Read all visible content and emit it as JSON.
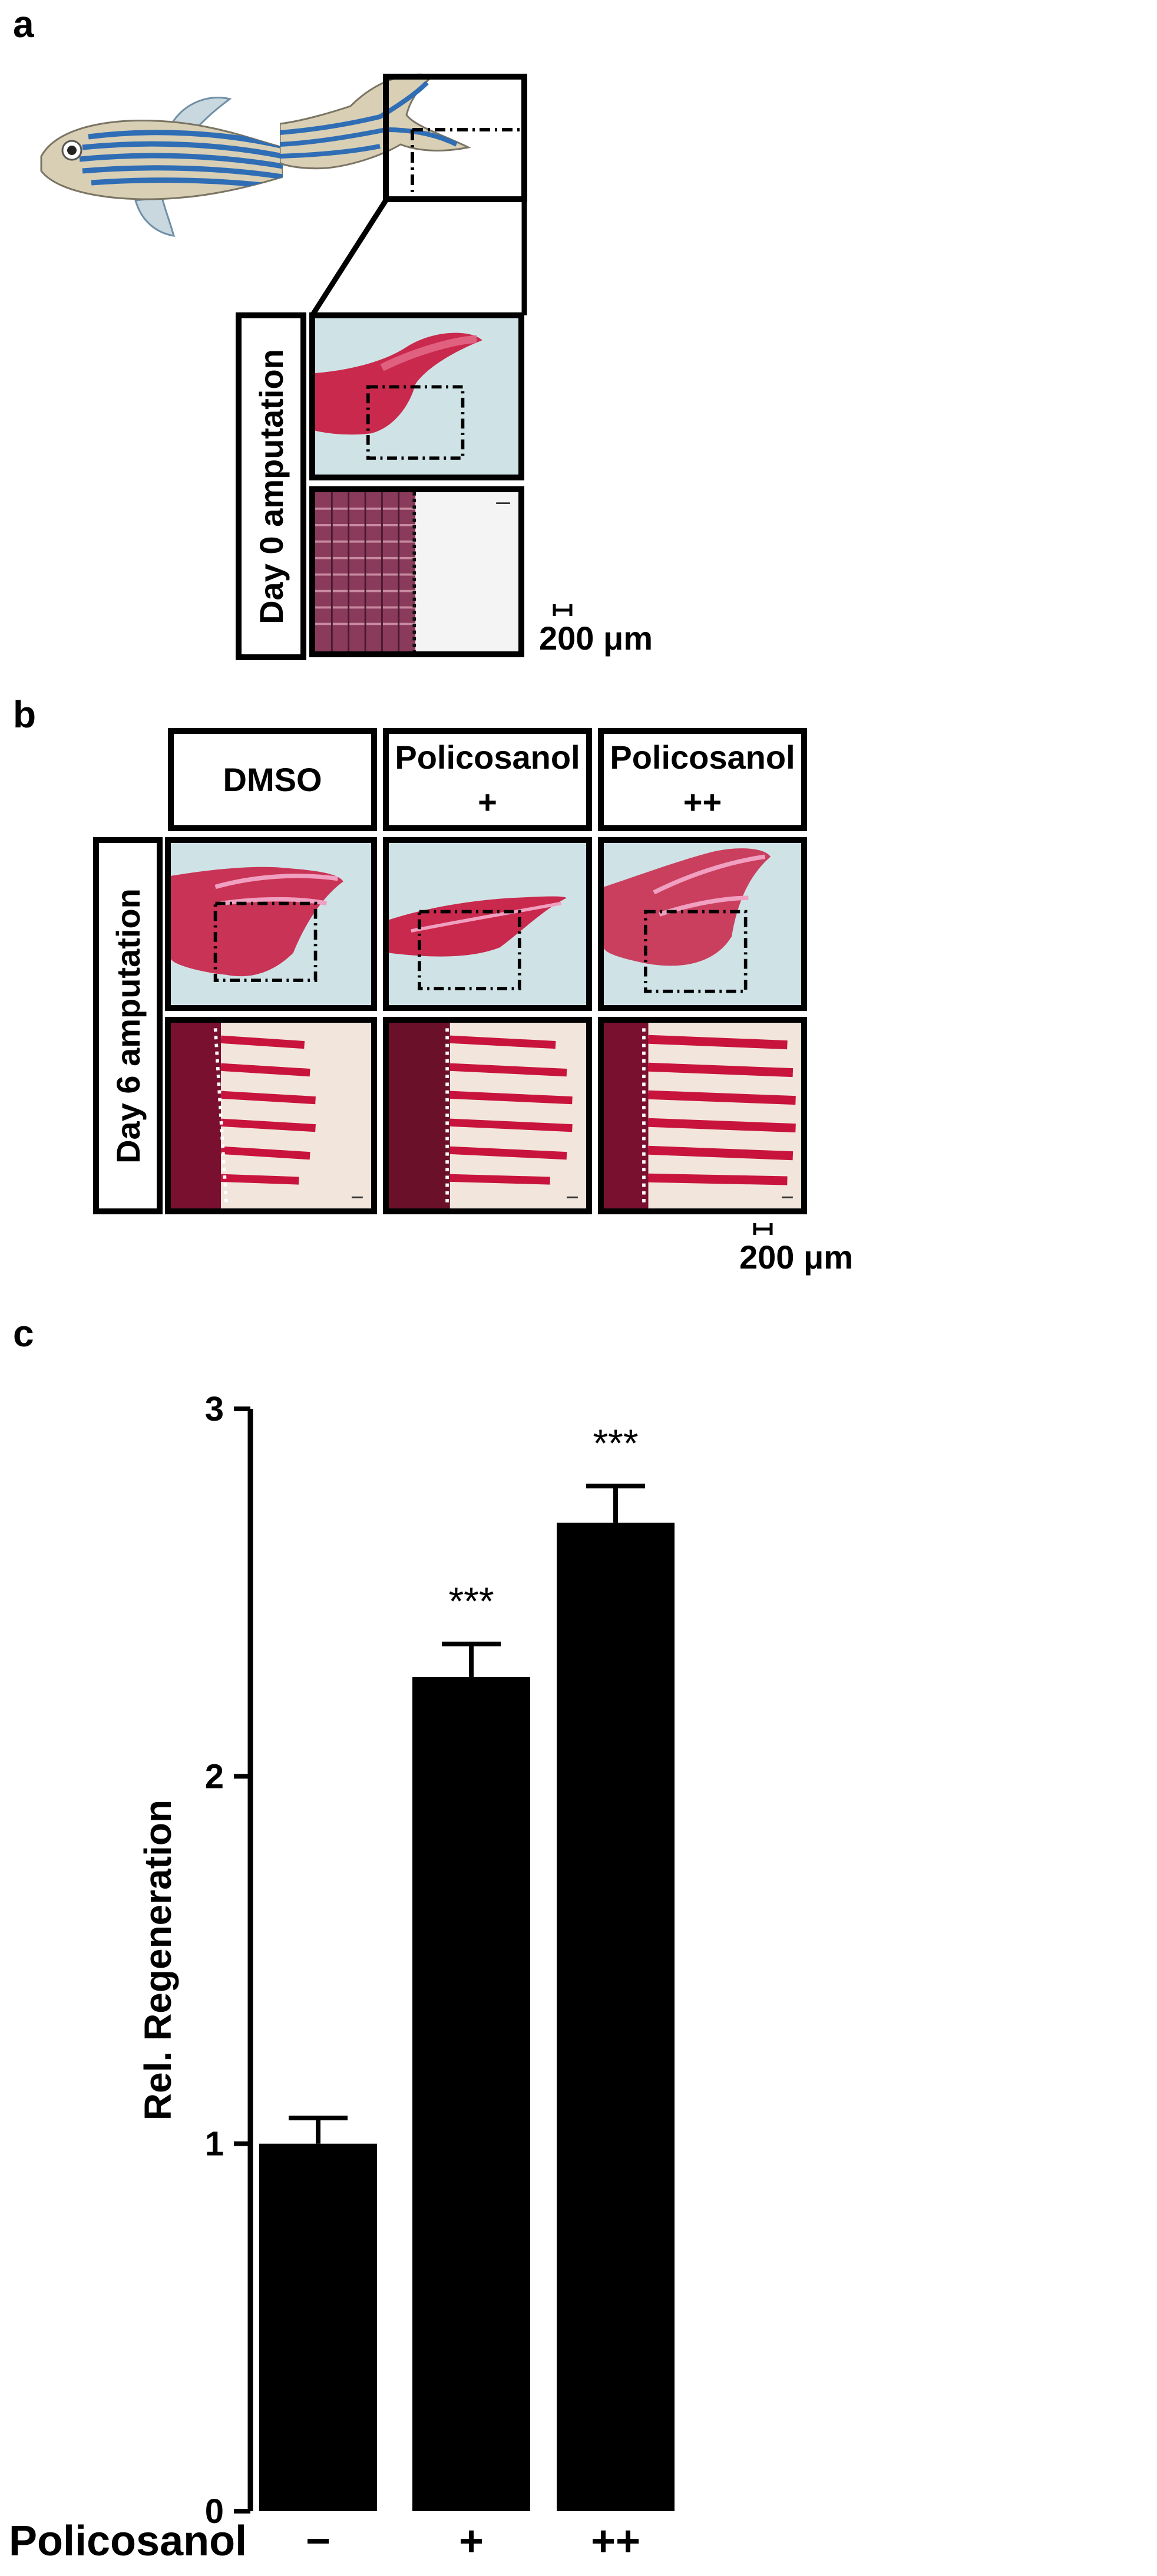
{
  "panels": {
    "a": {
      "letter": "a",
      "row_label": "Day 0 amputation",
      "scale_label": "200 μm"
    },
    "b": {
      "letter": "b",
      "columns": [
        {
          "line1": "DMSO",
          "line2": ""
        },
        {
          "line1": "Policosanol",
          "line2": "+"
        },
        {
          "line1": "Policosanol",
          "line2": "++"
        }
      ],
      "row_label": "Day 6 amputation",
      "scale_label": "200 μm"
    },
    "c": {
      "letter": "c"
    }
  },
  "colors": {
    "fish_blue": "#2f6db5",
    "fish_body": "#d9cfb4",
    "photo_bg": "#cfe3e6",
    "stain": "#c8143c",
    "bar": "#000000"
  },
  "chart_data": {
    "type": "bar",
    "categories": [
      "−",
      "+",
      "++"
    ],
    "values": [
      1.0,
      2.27,
      2.69
    ],
    "errors": [
      0.07,
      0.09,
      0.1
    ],
    "significance": [
      "",
      "***",
      "***"
    ],
    "xlabel": "Policosanol",
    "ylabel": "Rel. Regeneration",
    "ylim": [
      0,
      3
    ],
    "yticks": [
      "0",
      "1",
      "2",
      "3"
    ],
    "grid": false
  }
}
